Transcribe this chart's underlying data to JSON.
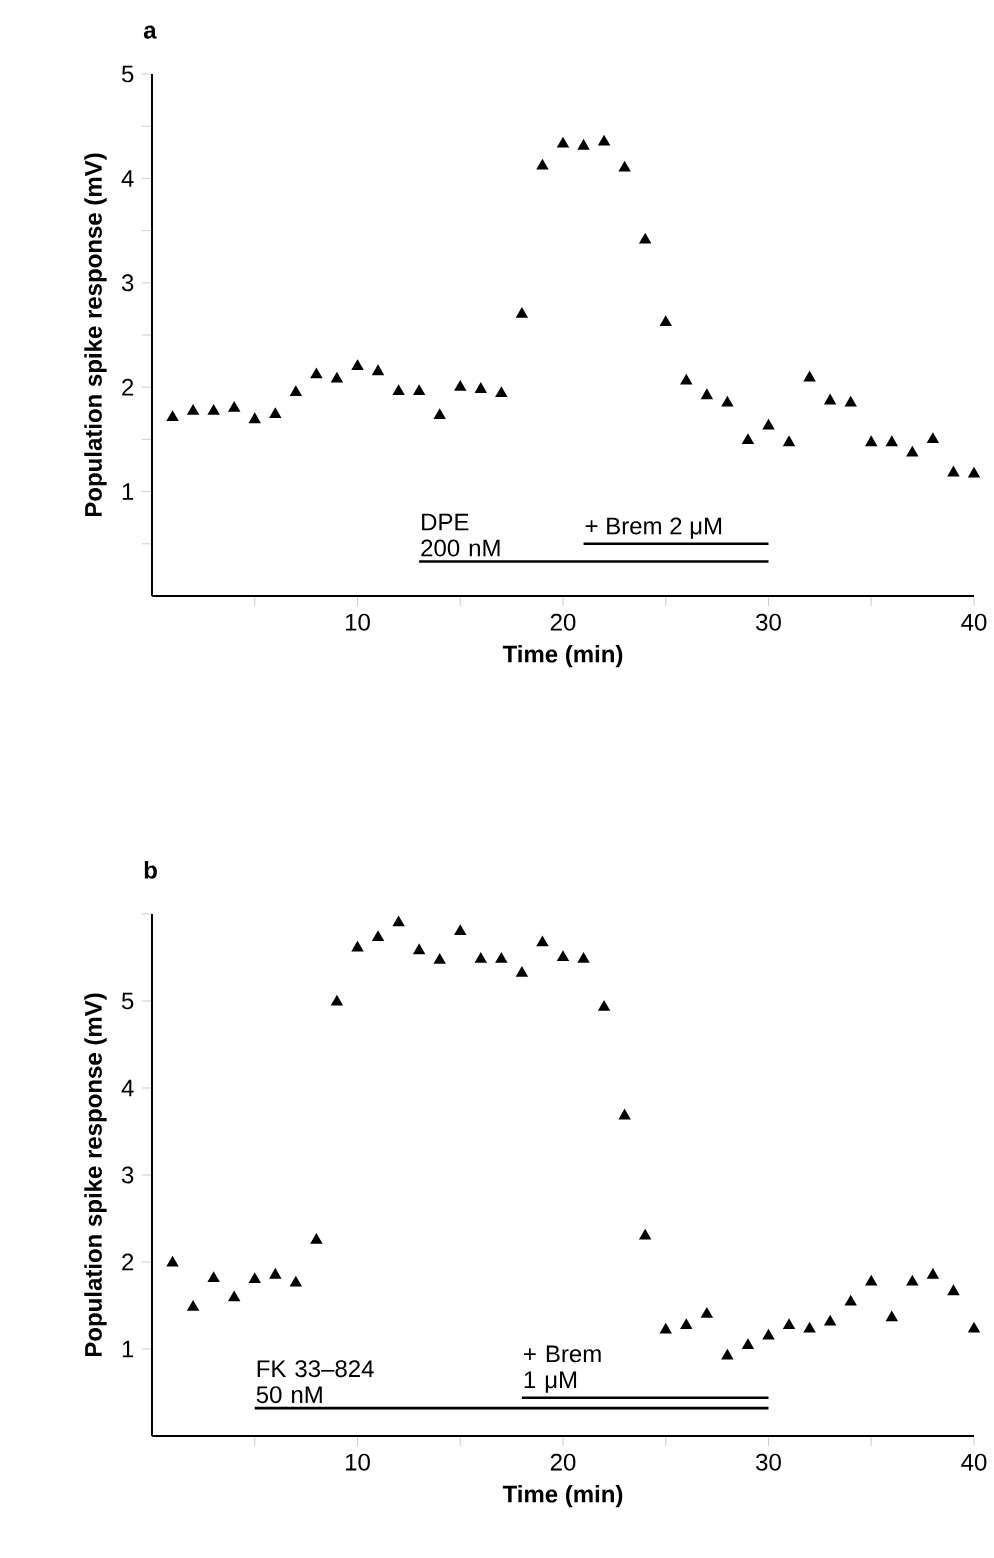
{
  "chart_data": [
    {
      "type": "scatter",
      "title": "a",
      "xlabel": "Time (min)",
      "ylabel": "Population spike response (mV)",
      "series": [
        {
          "marker": "triangle",
          "color": "#000000",
          "x": [
            1,
            2,
            3,
            4,
            5,
            6,
            7,
            8,
            9,
            10,
            11,
            12,
            13,
            14,
            15,
            16,
            17,
            18,
            19,
            20,
            21,
            22,
            23,
            24,
            25,
            26,
            27,
            28,
            29,
            30,
            31,
            32,
            33,
            34,
            35,
            36,
            37,
            38,
            39,
            40
          ],
          "values": [
            1.71,
            1.77,
            1.77,
            1.8,
            1.69,
            1.74,
            1.95,
            2.12,
            2.08,
            2.2,
            2.15,
            1.96,
            1.96,
            1.73,
            2.0,
            1.98,
            1.94,
            2.7,
            4.12,
            4.33,
            4.31,
            4.35,
            4.1,
            3.41,
            2.62,
            2.06,
            1.92,
            1.85,
            1.49,
            1.63,
            1.47,
            2.09,
            1.87,
            1.85,
            1.47,
            1.47,
            1.37,
            1.5,
            1.18,
            1.17
          ]
        },
        {
          "type": "line",
          "name": "DPE 200 nM",
          "color": "#000000",
          "x": [
            13,
            30
          ],
          "values": [
            0.33,
            0.33
          ]
        },
        {
          "type": "line",
          "name": "+ Brem 2 μM",
          "color": "#000000",
          "x": [
            21,
            30
          ],
          "values": [
            0.5,
            0.5
          ]
        }
      ],
      "xlim": [
        0,
        40
      ],
      "ylim": [
        0,
        5
      ],
      "xticks": [
        {
          "value": 5,
          "label": null
        },
        10,
        {
          "value": 15,
          "label": null
        },
        20,
        {
          "value": 25,
          "label": null
        },
        30,
        {
          "value": 35,
          "label": null
        },
        40
      ],
      "yticks": [
        {
          "value": 0.5,
          "label": null
        },
        1,
        {
          "value": 1.5,
          "label": null
        },
        2,
        {
          "value": 2.5,
          "label": null
        },
        3,
        {
          "value": 3.5,
          "label": null
        },
        4,
        {
          "value": 4.5,
          "label": null
        },
        5
      ]
    },
    {
      "type": "scatter",
      "title": "b",
      "xlabel": "Time (min)",
      "ylabel": "Population spike response (mV)",
      "series": [
        {
          "marker": "triangle",
          "color": "#000000",
          "x": [
            1,
            2,
            3,
            4,
            5,
            6,
            7,
            8,
            9,
            10,
            11,
            12,
            13,
            14,
            15,
            16,
            17,
            18,
            19,
            20,
            21,
            22,
            23,
            24,
            25,
            26,
            27,
            28,
            29,
            30,
            31,
            32,
            33,
            34,
            35,
            36,
            37,
            38,
            39,
            40
          ],
          "values": [
            1.99,
            1.48,
            1.81,
            1.59,
            1.8,
            1.85,
            1.76,
            2.25,
            4.99,
            5.61,
            5.73,
            5.9,
            5.58,
            5.47,
            5.8,
            5.48,
            5.48,
            5.32,
            5.67,
            5.5,
            5.48,
            4.93,
            3.68,
            2.3,
            1.22,
            1.27,
            1.4,
            0.92,
            1.04,
            1.15,
            1.27,
            1.23,
            1.31,
            1.54,
            1.77,
            1.36,
            1.77,
            1.85,
            1.66,
            1.23
          ]
        },
        {
          "type": "line",
          "name": "FK 33–824 50 nM",
          "color": "#000000",
          "x": [
            5,
            30
          ],
          "values": [
            0.32,
            0.32
          ]
        },
        {
          "type": "line",
          "name": "+ Brem 1 μM",
          "color": "#000000",
          "x": [
            18,
            30
          ],
          "values": [
            0.44,
            0.44
          ]
        }
      ],
      "xlim": [
        0,
        40
      ],
      "ylim": [
        0,
        6
      ],
      "xticks": [
        {
          "value": 5,
          "label": null
        },
        10,
        {
          "value": 15,
          "label": null
        },
        20,
        {
          "value": 25,
          "label": null
        },
        30,
        {
          "value": 35,
          "label": null
        },
        40
      ],
      "yticks": [
        1,
        2,
        3,
        4,
        5,
        {
          "value": 6,
          "label": null
        }
      ]
    }
  ]
}
